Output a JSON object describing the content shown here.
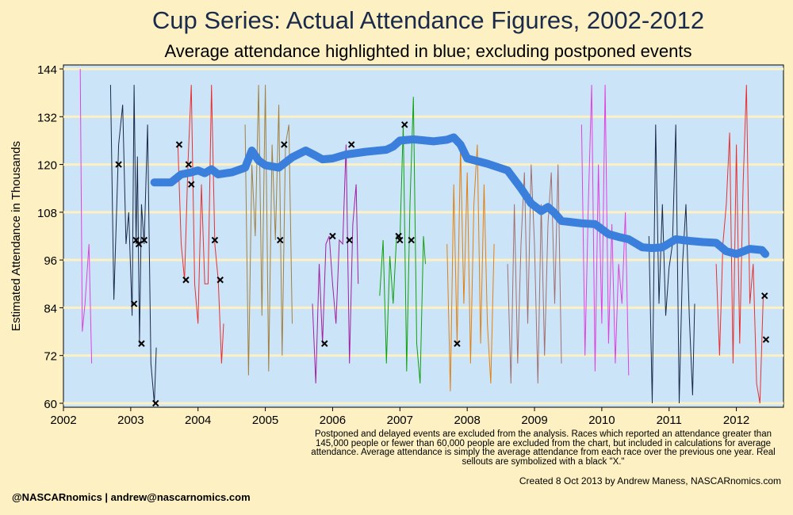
{
  "chart_data": {
    "type": "line",
    "title": "Cup Series: Actual Attendance Figures, 2002-2012",
    "subtitle": "Average attendance highlighted in blue; excluding postponed events",
    "ylabel": "Estimated Attendance in Thousands",
    "xlabel": "",
    "xlim": [
      2002,
      2012.7
    ],
    "ylim": [
      59,
      145
    ],
    "x_ticks": [
      2002,
      2003,
      2004,
      2005,
      2006,
      2007,
      2008,
      2009,
      2010,
      2011,
      2012
    ],
    "y_ticks": [
      60,
      72,
      84,
      96,
      108,
      120,
      132,
      144
    ],
    "grid": "horizontal",
    "legend": "none",
    "average_color": "#3a7fdc",
    "sellout_marker": "x",
    "season_colors": {
      "2002": "#e040e0",
      "2003": "#1a2a4a",
      "2004": "#e83030",
      "2005": "#a08040",
      "2006": "#a020a0",
      "2007": "#10a010",
      "2008": "#e08010",
      "2009": "#a07070",
      "2010": "#e040e0",
      "2011": "#1a2a4a",
      "2012": "#e83030"
    },
    "average_series": {
      "name": "Average attendance",
      "x": [
        2003.35,
        2003.6,
        2003.75,
        2003.9,
        2004.0,
        2004.1,
        2004.2,
        2004.3,
        2004.5,
        2004.7,
        2004.8,
        2004.9,
        2005.0,
        2005.2,
        2005.4,
        2005.6,
        2005.75,
        2005.85,
        2006.0,
        2006.2,
        2006.5,
        2006.8,
        2006.9,
        2007.0,
        2007.2,
        2007.5,
        2007.7,
        2007.8,
        2007.9,
        2008.0,
        2008.3,
        2008.6,
        2008.8,
        2008.95,
        2009.1,
        2009.2,
        2009.3,
        2009.4,
        2009.7,
        2009.9,
        2010.1,
        2010.25,
        2010.4,
        2010.6,
        2010.75,
        2010.9,
        2011.1,
        2011.3,
        2011.5,
        2011.7,
        2011.85,
        2012.0,
        2012.2,
        2012.38,
        2012.43
      ],
      "y": [
        115.5,
        115.5,
        117.5,
        118,
        118.5,
        117.8,
        118.8,
        117.5,
        118,
        119.2,
        123.5,
        121,
        119.8,
        119.2,
        121.8,
        123.5,
        122.2,
        121.3,
        121.5,
        122.5,
        123.2,
        123.7,
        124.5,
        126,
        126.3,
        125.8,
        126.2,
        126.8,
        125,
        121.5,
        120.2,
        118.5,
        114,
        110.2,
        108.3,
        109.3,
        107.8,
        105.8,
        105.2,
        105,
        102.5,
        101.8,
        101.2,
        99.2,
        99,
        99.2,
        101.2,
        100.8,
        100.5,
        100.3,
        98.2,
        97.5,
        98.8,
        98.5,
        97.5
      ]
    },
    "season_series": [
      {
        "year": 2002,
        "x": [
          2002.25,
          2002.28,
          2002.32,
          2002.38,
          2002.42
        ],
        "y": [
          144,
          78,
          85,
          100,
          70
        ]
      },
      {
        "year": 2003,
        "x": [
          2002.7,
          2002.75,
          2002.82,
          2002.88,
          2002.93,
          2002.97,
          2003.02,
          2003.05,
          2003.08,
          2003.1,
          2003.13,
          2003.16,
          2003.2,
          2003.25,
          2003.3,
          2003.35,
          2003.38
        ],
        "y": [
          140,
          86,
          125,
          135,
          100,
          108,
          82,
          140,
          100,
          122,
          75,
          110,
          100,
          130,
          70,
          60,
          74
        ]
      },
      {
        "year": 2004,
        "x": [
          2003.7,
          2003.75,
          2003.8,
          2003.85,
          2003.9,
          2003.95,
          2004.0,
          2004.05,
          2004.1,
          2004.15,
          2004.2,
          2004.25,
          2004.3,
          2004.35,
          2004.38
        ],
        "y": [
          125,
          100,
          91,
          120,
          140,
          90,
          80,
          115,
          90,
          90,
          140,
          100,
          91,
          70,
          80
        ]
      },
      {
        "year": 2005,
        "x": [
          2004.7,
          2004.75,
          2004.8,
          2004.85,
          2004.9,
          2004.95,
          2005.0,
          2005.05,
          2005.1,
          2005.15,
          2005.2,
          2005.25,
          2005.3,
          2005.35,
          2005.4
        ],
        "y": [
          130,
          67,
          120,
          102,
          140,
          82,
          140,
          68,
          125,
          101,
          135,
          72,
          125,
          130,
          80
        ]
      },
      {
        "year": 2006,
        "x": [
          2005.7,
          2005.75,
          2005.8,
          2005.85,
          2005.9,
          2005.95,
          2006.0,
          2006.05,
          2006.1,
          2006.15,
          2006.2,
          2006.25,
          2006.3,
          2006.35,
          2006.38
        ],
        "y": [
          85,
          65,
          95,
          75,
          100,
          102,
          90,
          80,
          101,
          100,
          125,
          70,
          105,
          115,
          90
        ]
      },
      {
        "year": 2007,
        "x": [
          2006.7,
          2006.75,
          2006.8,
          2006.85,
          2006.9,
          2006.95,
          2007.0,
          2007.05,
          2007.1,
          2007.15,
          2007.2,
          2007.25,
          2007.3,
          2007.35,
          2007.38
        ],
        "y": [
          87,
          101,
          70,
          97,
          85,
          102,
          101,
          130,
          68,
          110,
          137,
          75,
          65,
          102,
          95
        ]
      },
      {
        "year": 2008,
        "x": [
          2007.7,
          2007.75,
          2007.8,
          2007.85,
          2007.9,
          2007.95,
          2008.0,
          2008.05,
          2008.1,
          2008.15,
          2008.2,
          2008.25,
          2008.3,
          2008.35,
          2008.4
        ],
        "y": [
          100,
          63,
          115,
          75,
          125,
          85,
          118,
          70,
          110,
          125,
          75,
          115,
          80,
          65,
          100
        ]
      },
      {
        "year": 2009,
        "x": [
          2008.6,
          2008.65,
          2008.7,
          2008.75,
          2008.8,
          2008.85,
          2008.9,
          2008.95,
          2009.0,
          2009.05,
          2009.1,
          2009.15,
          2009.2,
          2009.25,
          2009.3,
          2009.35,
          2009.4
        ],
        "y": [
          95,
          65,
          110,
          70,
          100,
          118,
          80,
          120,
          100,
          65,
          110,
          72,
          105,
          118,
          85,
          120,
          70
        ]
      },
      {
        "year": 2010,
        "x": [
          2009.7,
          2009.75,
          2009.8,
          2009.85,
          2009.9,
          2009.95,
          2010.0,
          2010.05,
          2010.1,
          2010.15,
          2010.2,
          2010.25,
          2010.3,
          2010.35,
          2010.4
        ],
        "y": [
          130,
          72,
          110,
          140,
          68,
          120,
          80,
          140,
          75,
          105,
          70,
          95,
          85,
          108,
          67
        ]
      },
      {
        "year": 2011,
        "x": [
          2010.7,
          2010.75,
          2010.8,
          2010.85,
          2010.9,
          2010.95,
          2011.0,
          2011.05,
          2011.1,
          2011.15,
          2011.2,
          2011.25,
          2011.3,
          2011.35,
          2011.38
        ],
        "y": [
          102,
          60,
          130,
          85,
          110,
          82,
          94,
          100,
          130,
          60,
          95,
          110,
          82,
          62,
          85
        ]
      },
      {
        "year": 2012,
        "x": [
          2011.7,
          2011.75,
          2011.8,
          2011.85,
          2011.9,
          2011.95,
          2012.0,
          2012.05,
          2012.1,
          2012.15,
          2012.2,
          2012.25,
          2012.3,
          2012.35,
          2012.4
        ],
        "y": [
          95,
          72,
          100,
          110,
          128,
          70,
          125,
          75,
          115,
          140,
          85,
          95,
          65,
          60,
          87
        ]
      }
    ],
    "sellouts": {
      "x": [
        2002.82,
        2003.05,
        2003.08,
        2003.12,
        2003.16,
        2003.2,
        2003.37,
        2003.72,
        2003.82,
        2003.86,
        2003.9,
        2004.25,
        2004.33,
        2005.22,
        2005.28,
        2005.88,
        2006.0,
        2006.25,
        2006.28,
        2006.98,
        2007.0,
        2007.07,
        2007.17,
        2007.85,
        2012.42,
        2012.44
      ],
      "y": [
        120,
        85,
        101,
        100,
        75,
        101,
        60,
        125,
        91,
        120,
        115,
        101,
        91,
        101,
        125,
        75,
        102,
        101,
        125,
        102,
        101,
        130,
        101,
        75,
        87,
        76
      ]
    }
  },
  "footnote": "Postponed and delayed events are excluded from the analysis. Races which reported an attendance greater than 145,000 people or fewer than 60,000 people are excluded from the chart, but included in calculations for average attendance. Average attendance is simply the average attendance from each race over the previous one year. Real sellouts are symbolized with a black \"X.\"",
  "credit": "Created  8 Oct 2013 by Andrew Maness, NASCARnomics.com",
  "handle": "@NASCARnomics | andrew@nascarnomics.com"
}
